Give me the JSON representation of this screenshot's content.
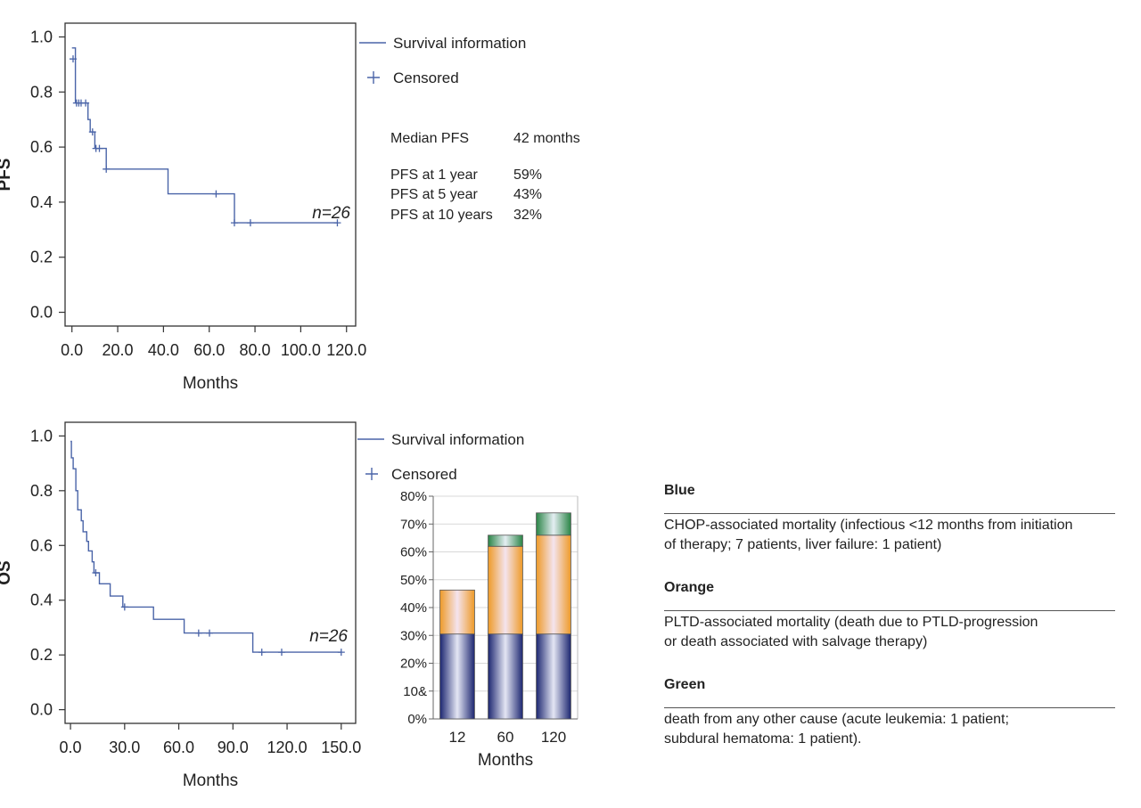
{
  "chart_data": [
    {
      "type": "line",
      "name": "km-pfs",
      "title": "",
      "xlabel": "Months",
      "ylabel": "PFS",
      "xlim": [
        -3,
        124
      ],
      "ylim": [
        -0.05,
        1.05
      ],
      "x_ticks": [
        0,
        20,
        40,
        60,
        80,
        100,
        120
      ],
      "x_tick_labels": [
        "0.0",
        "20.0",
        "40.0",
        "60.0",
        "80.0",
        "100.0",
        "120.0"
      ],
      "y_ticks": [
        0,
        0.2,
        0.4,
        0.6,
        0.8,
        1.0
      ],
      "y_tick_labels": [
        "0.0",
        "0.2",
        "0.4",
        "0.6",
        "0.8",
        "1.0"
      ],
      "steps": [
        [
          0,
          0.96
        ],
        [
          1.5,
          0.96
        ],
        [
          1.5,
          0.76
        ],
        [
          7,
          0.76
        ],
        [
          7,
          0.7
        ],
        [
          8,
          0.7
        ],
        [
          8,
          0.655
        ],
        [
          10,
          0.655
        ],
        [
          10,
          0.595
        ],
        [
          15,
          0.595
        ],
        [
          15,
          0.52
        ],
        [
          42,
          0.52
        ],
        [
          42,
          0.43
        ],
        [
          71,
          0.43
        ],
        [
          71,
          0.325
        ],
        [
          116,
          0.325
        ]
      ],
      "censored": [
        [
          0.5,
          0.92
        ],
        [
          2,
          0.76
        ],
        [
          3,
          0.76
        ],
        [
          4,
          0.76
        ],
        [
          6,
          0.76
        ],
        [
          9,
          0.655
        ],
        [
          10.5,
          0.595
        ],
        [
          12,
          0.595
        ],
        [
          15,
          0.52
        ],
        [
          63,
          0.43
        ],
        [
          71,
          0.325
        ],
        [
          78,
          0.325
        ],
        [
          116,
          0.325
        ]
      ],
      "annotation": "n=26",
      "legend": {
        "line_label": "Survival information",
        "censor_label": "Censored",
        "censor_symbol": "+"
      },
      "color": "#4a64a8"
    },
    {
      "type": "line",
      "name": "km-os",
      "title": "",
      "xlabel": "Months",
      "ylabel": "OS",
      "xlim": [
        -3,
        158
      ],
      "ylim": [
        -0.05,
        1.05
      ],
      "x_ticks": [
        0,
        30,
        60,
        90,
        120,
        150
      ],
      "x_tick_labels": [
        "0.0",
        "30.0",
        "60.0",
        "90.0",
        "120.0",
        "150.0"
      ],
      "y_ticks": [
        0,
        0.2,
        0.4,
        0.6,
        0.8,
        1.0
      ],
      "y_tick_labels": [
        "0.0",
        "0.2",
        "0.4",
        "0.6",
        "0.8",
        "1.0"
      ],
      "steps": [
        [
          0,
          0.98
        ],
        [
          0.5,
          0.98
        ],
        [
          0.5,
          0.92
        ],
        [
          1.5,
          0.92
        ],
        [
          1.5,
          0.88
        ],
        [
          3,
          0.88
        ],
        [
          3,
          0.8
        ],
        [
          4,
          0.8
        ],
        [
          4,
          0.73
        ],
        [
          6,
          0.73
        ],
        [
          6,
          0.69
        ],
        [
          7,
          0.69
        ],
        [
          7,
          0.65
        ],
        [
          9,
          0.65
        ],
        [
          9,
          0.615
        ],
        [
          10,
          0.615
        ],
        [
          10,
          0.58
        ],
        [
          12,
          0.58
        ],
        [
          12,
          0.54
        ],
        [
          13,
          0.54
        ],
        [
          13,
          0.5
        ],
        [
          16,
          0.5
        ],
        [
          16,
          0.46
        ],
        [
          22,
          0.46
        ],
        [
          22,
          0.415
        ],
        [
          29,
          0.415
        ],
        [
          29,
          0.375
        ],
        [
          46,
          0.375
        ],
        [
          46,
          0.33
        ],
        [
          63,
          0.33
        ],
        [
          63,
          0.28
        ],
        [
          101,
          0.28
        ],
        [
          101,
          0.21
        ],
        [
          150,
          0.21
        ]
      ],
      "censored": [
        [
          14,
          0.5
        ],
        [
          30,
          0.375
        ],
        [
          71,
          0.28
        ],
        [
          77,
          0.28
        ],
        [
          106,
          0.21
        ],
        [
          117,
          0.21
        ],
        [
          150,
          0.21
        ]
      ],
      "annotation": "n=26",
      "legend": {
        "line_label": "Survival information",
        "censor_label": "Censored",
        "censor_symbol": "+"
      },
      "color": "#4a64a8"
    },
    {
      "type": "bar",
      "name": "stacked-mortality",
      "stacked": true,
      "categories": [
        "12",
        "60",
        "120"
      ],
      "series": [
        {
          "name": "Blue",
          "values": [
            30.5,
            30.5,
            30.5
          ],
          "color": "#26307a"
        },
        {
          "name": "Orange",
          "values": [
            15.8,
            31.5,
            35.5
          ],
          "color": "#f0a030"
        },
        {
          "name": "Green",
          "values": [
            0,
            4,
            8
          ],
          "color": "#2e8a4a"
        }
      ],
      "xlabel": "Months",
      "ylabel": "",
      "ylim": [
        0,
        80
      ],
      "y_ticks": [
        0,
        10,
        20,
        30,
        40,
        50,
        60,
        70,
        80
      ],
      "y_tick_labels": [
        "0%",
        "10&",
        "20%",
        "30%",
        "40%",
        "50%",
        "60%",
        "70%",
        "80%"
      ]
    }
  ],
  "stats": {
    "median_label": "Median PFS",
    "median_value": "42 months",
    "rows": [
      {
        "label": "PFS at 1 year",
        "value": "59%"
      },
      {
        "label": "PFS at 5 year",
        "value": "43%"
      },
      {
        "label": "PFS at 10 years",
        "value": "32%"
      }
    ]
  },
  "notes": [
    {
      "color_name": "Blue",
      "lines": [
        "CHOP-associated mortality (infectious <12 months from initiation",
        "of therapy; 7 patients, liver failure: 1 patient)"
      ]
    },
    {
      "color_name": "Orange",
      "lines": [
        "PLTD-associated mortality (death due to PTLD-progression",
        "or death associated with salvage therapy)"
      ]
    },
    {
      "color_name": "Green",
      "lines": [
        "death from any other cause (acute leukemia: 1 patient;",
        "subdural hematoma: 1 patient)."
      ]
    }
  ]
}
